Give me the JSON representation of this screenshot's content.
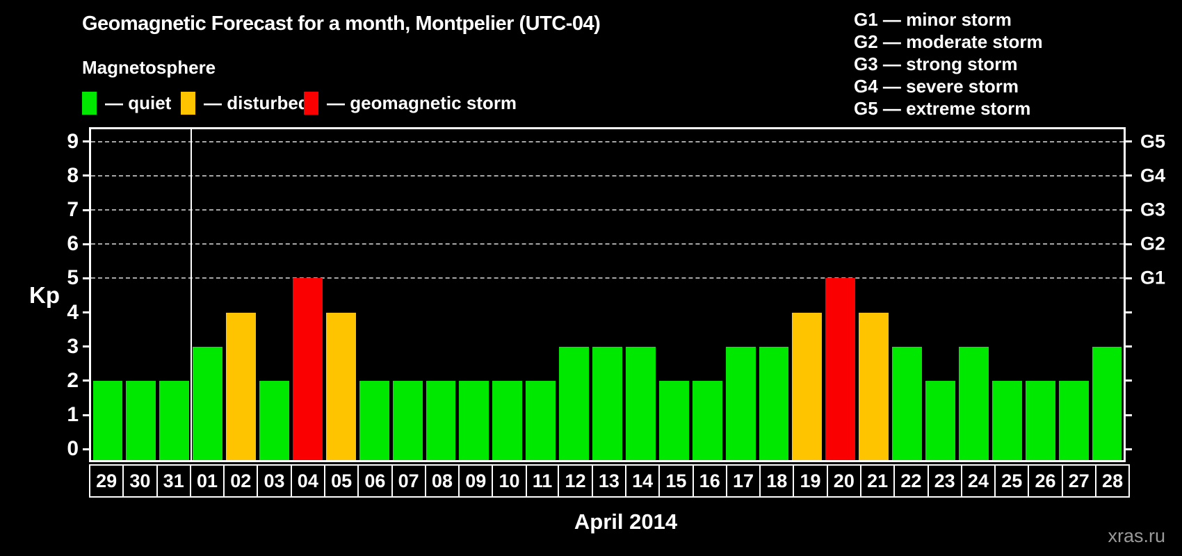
{
  "title": "Geomagnetic Forecast for a month, Montpelier (UTC-04)",
  "legend": {
    "heading": "Magnetosphere",
    "items": [
      {
        "key": "quiet",
        "label": "— quiet",
        "color": "#00e800"
      },
      {
        "key": "disturbed",
        "label": "— disturbed",
        "color": "#ffc400"
      },
      {
        "key": "storm",
        "label": "— geomagnetic storm",
        "color": "#fa0000"
      }
    ]
  },
  "g_scale_legend": [
    "G1 — minor storm",
    "G2 — moderate storm",
    "G3 — strong storm",
    "G4 — severe storm",
    "G5 — extreme storm"
  ],
  "footer": {
    "watermark": "xras.ru"
  },
  "chart_data": {
    "type": "bar",
    "title": "Geomagnetic Forecast for a month, Montpelier (UTC-04)",
    "ylabel": "Kp",
    "xlabel": "April 2014",
    "ylim": [
      0,
      9
    ],
    "yticks": [
      0,
      1,
      2,
      3,
      4,
      5,
      6,
      7,
      8,
      9
    ],
    "gridlines_at": [
      5,
      6,
      7,
      8,
      9
    ],
    "grid_style": "dashed horizontal lines at G-storm levels only",
    "legend_position": "top-left",
    "right_axis_labels": [
      {
        "kp": 5,
        "label": "G1"
      },
      {
        "kp": 6,
        "label": "G2"
      },
      {
        "kp": 7,
        "label": "G3"
      },
      {
        "kp": 8,
        "label": "G4"
      },
      {
        "kp": 9,
        "label": "G5"
      }
    ],
    "categories": [
      "29",
      "30",
      "31",
      "01",
      "02",
      "03",
      "04",
      "05",
      "06",
      "07",
      "08",
      "09",
      "10",
      "11",
      "12",
      "13",
      "14",
      "15",
      "16",
      "17",
      "18",
      "19",
      "20",
      "21",
      "22",
      "23",
      "24",
      "25",
      "26",
      "27",
      "28"
    ],
    "values": [
      2,
      2,
      2,
      3,
      4,
      2,
      5,
      4,
      2,
      2,
      2,
      2,
      2,
      2,
      3,
      3,
      3,
      2,
      2,
      3,
      3,
      4,
      5,
      4,
      3,
      2,
      3,
      2,
      2,
      2,
      3
    ],
    "statuses": [
      "quiet",
      "quiet",
      "quiet",
      "quiet",
      "disturbed",
      "quiet",
      "storm",
      "disturbed",
      "quiet",
      "quiet",
      "quiet",
      "quiet",
      "quiet",
      "quiet",
      "quiet",
      "quiet",
      "quiet",
      "quiet",
      "quiet",
      "quiet",
      "quiet",
      "disturbed",
      "storm",
      "disturbed",
      "quiet",
      "quiet",
      "quiet",
      "quiet",
      "quiet",
      "quiet",
      "quiet"
    ],
    "month_boundary_after_index": 2
  }
}
